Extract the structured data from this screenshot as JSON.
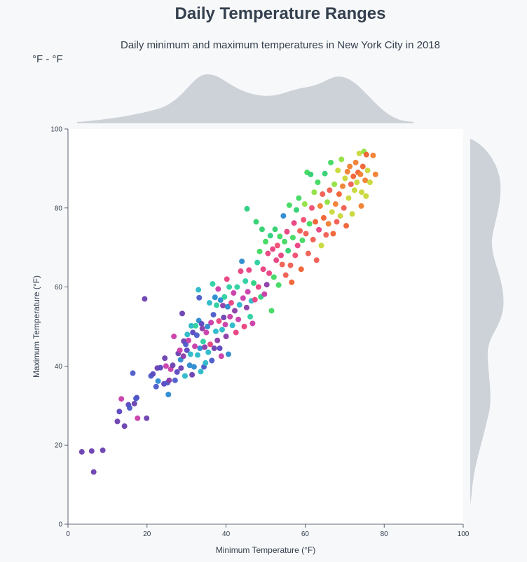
{
  "title": "Daily Temperature Ranges",
  "subtitle": "Daily minimum and maximum temperatures in New York City in 2018",
  "unit_label": "°F - °F",
  "chart_data": {
    "type": "scatter",
    "title": "Daily Temperature Ranges",
    "subtitle": "Daily minimum and maximum temperatures in New York City in 2018",
    "xlabel": "Minimum Temperature (°F)",
    "ylabel": "Maximum Temperature (°F)",
    "xlim": [
      0,
      100
    ],
    "ylim": [
      0,
      100
    ],
    "x_ticks": [
      "0",
      "20",
      "40",
      "60",
      "80",
      "100"
    ],
    "y_ticks": [
      "0",
      "20",
      "40",
      "60",
      "80",
      "100"
    ],
    "grid": false,
    "marginal_distributions": true,
    "colors": {
      "background": "#f7f8fa",
      "plot_background": "#ffffff",
      "marginal_fill": "#cdd2d8",
      "text": "#34404e"
    },
    "color_by": "day of year (rainbow: purple → blue → cyan → green → yellow → orange → red → magenta)",
    "points": [
      {
        "x": 3.5,
        "y": 18.3,
        "c": "#6a3fb0"
      },
      {
        "x": 6,
        "y": 18.5,
        "c": "#6a3fb0"
      },
      {
        "x": 6.5,
        "y": 13.2,
        "c": "#6a3fb0"
      },
      {
        "x": 8.8,
        "y": 18.7,
        "c": "#6a3fb0"
      },
      {
        "x": 12.5,
        "y": 26,
        "c": "#6a3fb0"
      },
      {
        "x": 13,
        "y": 28.5,
        "c": "#5a46c0"
      },
      {
        "x": 13.5,
        "y": 31.7,
        "c": "#c83ca8"
      },
      {
        "x": 14.3,
        "y": 24.8,
        "c": "#6a3fb0"
      },
      {
        "x": 15.3,
        "y": 30.2,
        "c": "#5a46c0"
      },
      {
        "x": 15.6,
        "y": 29.4,
        "c": "#4a5ac8"
      },
      {
        "x": 16.4,
        "y": 38.2,
        "c": "#4a5ac8"
      },
      {
        "x": 16.8,
        "y": 30.5,
        "c": "#6a3fb0"
      },
      {
        "x": 17.4,
        "y": 32,
        "c": "#5a46c0"
      },
      {
        "x": 17.6,
        "y": 26.8,
        "c": "#c83ca8"
      },
      {
        "x": 17.2,
        "y": 31.8,
        "c": "#4a5ac8"
      },
      {
        "x": 19.4,
        "y": 57,
        "c": "#6a3fb0"
      },
      {
        "x": 19.9,
        "y": 26.8,
        "c": "#6a3fb0"
      },
      {
        "x": 21,
        "y": 37.5,
        "c": "#4a5ac8"
      },
      {
        "x": 21.5,
        "y": 38,
        "c": "#5a46c0"
      },
      {
        "x": 22.3,
        "y": 34.8,
        "c": "#4a5ac8"
      },
      {
        "x": 22.8,
        "y": 36.2,
        "c": "#2a8ad0"
      },
      {
        "x": 22.6,
        "y": 39.5,
        "c": "#6a3fb0"
      },
      {
        "x": 23.4,
        "y": 39.6,
        "c": "#5a46c0"
      },
      {
        "x": 24.3,
        "y": 35.5,
        "c": "#5a46c0"
      },
      {
        "x": 24.5,
        "y": 42,
        "c": "#6a3fb0"
      },
      {
        "x": 24.8,
        "y": 40,
        "c": "#c83ca8"
      },
      {
        "x": 25.2,
        "y": 35.8,
        "c": "#4a5ac8"
      },
      {
        "x": 25.4,
        "y": 32.8,
        "c": "#2a8ad0"
      },
      {
        "x": 25.6,
        "y": 36.4,
        "c": "#8a3aa8"
      },
      {
        "x": 26,
        "y": 39.2,
        "c": "#c83ca8"
      },
      {
        "x": 26.5,
        "y": 40.2,
        "c": "#6a3fb0"
      },
      {
        "x": 26.8,
        "y": 47.5,
        "c": "#c83ca8"
      },
      {
        "x": 27.1,
        "y": 36.4,
        "c": "#4a5ac8"
      },
      {
        "x": 27.6,
        "y": 38.5,
        "c": "#5a46c0"
      },
      {
        "x": 27.9,
        "y": 43.2,
        "c": "#6a3fb0"
      },
      {
        "x": 28.3,
        "y": 44,
        "c": "#c83ca8"
      },
      {
        "x": 28.5,
        "y": 41.6,
        "c": "#2a8ad0"
      },
      {
        "x": 28.6,
        "y": 39.5,
        "c": "#6a3fb0"
      },
      {
        "x": 28.9,
        "y": 53.3,
        "c": "#6a3fb0"
      },
      {
        "x": 29.2,
        "y": 42.5,
        "c": "#8a3aa8"
      },
      {
        "x": 29.3,
        "y": 46.3,
        "c": "#6a3fb0"
      },
      {
        "x": 29.6,
        "y": 37.5,
        "c": "#2ab8c8"
      },
      {
        "x": 29.8,
        "y": 45.5,
        "c": "#4a5ac8"
      },
      {
        "x": 30.1,
        "y": 44,
        "c": "#5a46c0"
      },
      {
        "x": 30.2,
        "y": 48,
        "c": "#2ab8c8"
      },
      {
        "x": 30.5,
        "y": 46.5,
        "c": "#c83ca8"
      },
      {
        "x": 30.8,
        "y": 40.2,
        "c": "#2a8ad0"
      },
      {
        "x": 31,
        "y": 43,
        "c": "#2ab8c8"
      },
      {
        "x": 31.2,
        "y": 50.2,
        "c": "#2ab8c8"
      },
      {
        "x": 31.4,
        "y": 37.8,
        "c": "#6a3fb0"
      },
      {
        "x": 31.6,
        "y": 48.5,
        "c": "#5a46c0"
      },
      {
        "x": 31.9,
        "y": 39.8,
        "c": "#2a8ad0"
      },
      {
        "x": 32.1,
        "y": 45,
        "c": "#c83ca8"
      },
      {
        "x": 32.3,
        "y": 50.2,
        "c": "#2ad0a0"
      },
      {
        "x": 32.6,
        "y": 47.8,
        "c": "#4a5ac8"
      },
      {
        "x": 32.8,
        "y": 42.8,
        "c": "#2ab8c8"
      },
      {
        "x": 33,
        "y": 59.3,
        "c": "#2ab8c8"
      },
      {
        "x": 33.1,
        "y": 51.5,
        "c": "#2a8ad0"
      },
      {
        "x": 33.2,
        "y": 57.3,
        "c": "#4a5ac8"
      },
      {
        "x": 33.4,
        "y": 44.5,
        "c": "#2a8ad0"
      },
      {
        "x": 33.6,
        "y": 38.6,
        "c": "#2ab8c8"
      },
      {
        "x": 33.8,
        "y": 50.7,
        "c": "#5a46c0"
      },
      {
        "x": 34,
        "y": 49.5,
        "c": "#8a3aa8"
      },
      {
        "x": 34.2,
        "y": 46.2,
        "c": "#2ad0a0"
      },
      {
        "x": 34.4,
        "y": 39.8,
        "c": "#4a5ac8"
      },
      {
        "x": 34.6,
        "y": 44.8,
        "c": "#8a3aa8"
      },
      {
        "x": 34.8,
        "y": 40.8,
        "c": "#2ab8c8"
      },
      {
        "x": 35,
        "y": 48.5,
        "c": "#c83ca8"
      },
      {
        "x": 35.3,
        "y": 50,
        "c": "#2a8ad0"
      },
      {
        "x": 35.5,
        "y": 43.5,
        "c": "#2ab8c8"
      },
      {
        "x": 35.8,
        "y": 56,
        "c": "#2ab8c8"
      },
      {
        "x": 36,
        "y": 45.5,
        "c": "#e84080"
      },
      {
        "x": 36.2,
        "y": 51,
        "c": "#c83ca8"
      },
      {
        "x": 36.4,
        "y": 41.4,
        "c": "#4a5ac8"
      },
      {
        "x": 36.6,
        "y": 60.8,
        "c": "#2ad0a0"
      },
      {
        "x": 36.8,
        "y": 53,
        "c": "#4a5ac8"
      },
      {
        "x": 37,
        "y": 44.5,
        "c": "#6a3fb0"
      },
      {
        "x": 37.2,
        "y": 57.4,
        "c": "#2a8ad0"
      },
      {
        "x": 37.4,
        "y": 48.8,
        "c": "#2ab8c8"
      },
      {
        "x": 37.6,
        "y": 55.4,
        "c": "#2ad0a0"
      },
      {
        "x": 37.8,
        "y": 46.5,
        "c": "#8a3aa8"
      },
      {
        "x": 38,
        "y": 59.5,
        "c": "#c83ca8"
      },
      {
        "x": 38.2,
        "y": 51.4,
        "c": "#e84080"
      },
      {
        "x": 38.4,
        "y": 44.5,
        "c": "#5a46c0"
      },
      {
        "x": 38.6,
        "y": 56.7,
        "c": "#2a8ad0"
      },
      {
        "x": 38.8,
        "y": 42.5,
        "c": "#c83ca8"
      },
      {
        "x": 39,
        "y": 49.2,
        "c": "#2ab8c8"
      },
      {
        "x": 39.2,
        "y": 55.3,
        "c": "#8a3aa8"
      },
      {
        "x": 39.4,
        "y": 52.3,
        "c": "#6a3fb0"
      },
      {
        "x": 39.6,
        "y": 57.5,
        "c": "#2ad0a0"
      },
      {
        "x": 39.8,
        "y": 50.5,
        "c": "#c83ca8"
      },
      {
        "x": 40,
        "y": 47.5,
        "c": "#8a3aa8"
      },
      {
        "x": 40.2,
        "y": 62,
        "c": "#e84080"
      },
      {
        "x": 40.4,
        "y": 55,
        "c": "#2a8ad0"
      },
      {
        "x": 40.6,
        "y": 43,
        "c": "#2a8ad0"
      },
      {
        "x": 40.8,
        "y": 60,
        "c": "#2ad0a0"
      },
      {
        "x": 41.0,
        "y": 52.5,
        "c": "#c83ca8"
      },
      {
        "x": 41.3,
        "y": 56,
        "c": "#e84080"
      },
      {
        "x": 41.6,
        "y": 50.3,
        "c": "#2ab8c8"
      },
      {
        "x": 41.9,
        "y": 58.5,
        "c": "#c83ca8"
      },
      {
        "x": 42.2,
        "y": 54,
        "c": "#8a3aa8"
      },
      {
        "x": 42.5,
        "y": 48.5,
        "c": "#e84080"
      },
      {
        "x": 42.8,
        "y": 60,
        "c": "#2ad0a0"
      },
      {
        "x": 43.1,
        "y": 51.8,
        "c": "#c83ca8"
      },
      {
        "x": 43.4,
        "y": 55.5,
        "c": "#2ab8c8"
      },
      {
        "x": 43.7,
        "y": 64,
        "c": "#e84080"
      },
      {
        "x": 44,
        "y": 66.5,
        "c": "#2a8ad0"
      },
      {
        "x": 44.3,
        "y": 57.2,
        "c": "#c83ca8"
      },
      {
        "x": 44.6,
        "y": 50,
        "c": "#e84080"
      },
      {
        "x": 44.9,
        "y": 61.5,
        "c": "#2ad0a0"
      },
      {
        "x": 45.2,
        "y": 54.8,
        "c": "#8a3aa8"
      },
      {
        "x": 45.5,
        "y": 58.8,
        "c": "#c83ca8"
      },
      {
        "x": 45.3,
        "y": 79.8,
        "c": "#2ad080"
      },
      {
        "x": 45.8,
        "y": 64.3,
        "c": "#e84080"
      },
      {
        "x": 46.1,
        "y": 52.5,
        "c": "#2ad0a0"
      },
      {
        "x": 46.4,
        "y": 56.5,
        "c": "#2ab8c8"
      },
      {
        "x": 46.7,
        "y": 50.8,
        "c": "#c83ca8"
      },
      {
        "x": 47.0,
        "y": 61,
        "c": "#2ad080"
      },
      {
        "x": 47.3,
        "y": 56.8,
        "c": "#e84080"
      },
      {
        "x": 47.6,
        "y": 76.5,
        "c": "#30d070"
      },
      {
        "x": 47.9,
        "y": 66.2,
        "c": "#2ad0a0"
      },
      {
        "x": 48.2,
        "y": 60,
        "c": "#e84080"
      },
      {
        "x": 48.5,
        "y": 69,
        "c": "#40d860"
      },
      {
        "x": 48.8,
        "y": 57.5,
        "c": "#2ad080"
      },
      {
        "x": 49.1,
        "y": 74.6,
        "c": "#30d070"
      },
      {
        "x": 49.4,
        "y": 64.5,
        "c": "#e84080"
      },
      {
        "x": 49.7,
        "y": 58.2,
        "c": "#c83ca8"
      },
      {
        "x": 50.0,
        "y": 71.5,
        "c": "#40d860"
      },
      {
        "x": 50.3,
        "y": 60.6,
        "c": "#8a3aa8"
      },
      {
        "x": 50.6,
        "y": 68.5,
        "c": "#e84080"
      },
      {
        "x": 50.9,
        "y": 63.5,
        "c": "#e84080"
      },
      {
        "x": 51.2,
        "y": 73,
        "c": "#2ad080"
      },
      {
        "x": 51.5,
        "y": 54,
        "c": "#40d860"
      },
      {
        "x": 51.8,
        "y": 69.6,
        "c": "#e84080"
      },
      {
        "x": 52.1,
        "y": 62.5,
        "c": "#40d860"
      },
      {
        "x": 52.4,
        "y": 74.6,
        "c": "#30d070"
      },
      {
        "x": 52.7,
        "y": 66.8,
        "c": "#e84080"
      },
      {
        "x": 53.0,
        "y": 70.5,
        "c": "#f04c70"
      },
      {
        "x": 53.3,
        "y": 60.5,
        "c": "#40d860"
      },
      {
        "x": 53.6,
        "y": 72.8,
        "c": "#40d860"
      },
      {
        "x": 53.9,
        "y": 68,
        "c": "#e84080"
      },
      {
        "x": 54.2,
        "y": 65.7,
        "c": "#f05c50"
      },
      {
        "x": 54.5,
        "y": 78,
        "c": "#2a8ad0"
      },
      {
        "x": 54.8,
        "y": 71.5,
        "c": "#40d860"
      },
      {
        "x": 55.1,
        "y": 63,
        "c": "#f05c50"
      },
      {
        "x": 55.4,
        "y": 74,
        "c": "#e84080"
      },
      {
        "x": 55.7,
        "y": 69.2,
        "c": "#30d070"
      },
      {
        "x": 56.0,
        "y": 80.7,
        "c": "#40d860"
      },
      {
        "x": 56.3,
        "y": 65.5,
        "c": "#f05c50"
      },
      {
        "x": 56.6,
        "y": 61.2,
        "c": "#f06030"
      },
      {
        "x": 56.9,
        "y": 72.5,
        "c": "#40d860"
      },
      {
        "x": 57.2,
        "y": 76.2,
        "c": "#e84080"
      },
      {
        "x": 57.5,
        "y": 68,
        "c": "#f04c70"
      },
      {
        "x": 57.8,
        "y": 79.5,
        "c": "#30d070"
      },
      {
        "x": 58.1,
        "y": 70.5,
        "c": "#e84080"
      },
      {
        "x": 58.4,
        "y": 82.5,
        "c": "#40d860"
      },
      {
        "x": 58.7,
        "y": 74.2,
        "c": "#f05c50"
      },
      {
        "x": 59.0,
        "y": 64.5,
        "c": "#f06030"
      },
      {
        "x": 59.3,
        "y": 71.8,
        "c": "#40d860"
      },
      {
        "x": 59.6,
        "y": 77,
        "c": "#f04c70"
      },
      {
        "x": 59.9,
        "y": 81,
        "c": "#90e040"
      },
      {
        "x": 60.2,
        "y": 73.5,
        "c": "#f05c50"
      },
      {
        "x": 60.5,
        "y": 89,
        "c": "#40d860"
      },
      {
        "x": 60.8,
        "y": 68.5,
        "c": "#f05c50"
      },
      {
        "x": 61.1,
        "y": 76,
        "c": "#40d860"
      },
      {
        "x": 61.4,
        "y": 88.5,
        "c": "#30d070"
      },
      {
        "x": 61.7,
        "y": 80,
        "c": "#f04c70"
      },
      {
        "x": 62.0,
        "y": 72,
        "c": "#f05c50"
      },
      {
        "x": 62.3,
        "y": 84,
        "c": "#90e040"
      },
      {
        "x": 62.6,
        "y": 76.5,
        "c": "#f06030"
      },
      {
        "x": 62.9,
        "y": 66.8,
        "c": "#f05c50"
      },
      {
        "x": 63.2,
        "y": 86.5,
        "c": "#40d860"
      },
      {
        "x": 63.5,
        "y": 74.5,
        "c": "#e84080"
      },
      {
        "x": 63.8,
        "y": 80.5,
        "c": "#f08030"
      },
      {
        "x": 64.1,
        "y": 70.5,
        "c": "#c8d838"
      },
      {
        "x": 64.4,
        "y": 83.5,
        "c": "#f05c50"
      },
      {
        "x": 64.7,
        "y": 77.5,
        "c": "#f06030"
      },
      {
        "x": 65.0,
        "y": 88.7,
        "c": "#30d070"
      },
      {
        "x": 65.3,
        "y": 73.2,
        "c": "#f05c50"
      },
      {
        "x": 65.6,
        "y": 81.5,
        "c": "#90e040"
      },
      {
        "x": 65.9,
        "y": 76,
        "c": "#f08030"
      },
      {
        "x": 66.2,
        "y": 84.5,
        "c": "#f05c50"
      },
      {
        "x": 66.5,
        "y": 91.5,
        "c": "#40d860"
      },
      {
        "x": 66.8,
        "y": 79,
        "c": "#c8d838"
      },
      {
        "x": 67.1,
        "y": 73.5,
        "c": "#f06030"
      },
      {
        "x": 67.4,
        "y": 86,
        "c": "#90e040"
      },
      {
        "x": 67.7,
        "y": 81,
        "c": "#f08030"
      },
      {
        "x": 68.0,
        "y": 76.5,
        "c": "#f05c50"
      },
      {
        "x": 68.3,
        "y": 89.5,
        "c": "#c8d838"
      },
      {
        "x": 68.6,
        "y": 83.5,
        "c": "#f06030"
      },
      {
        "x": 68.9,
        "y": 78,
        "c": "#c8d838"
      },
      {
        "x": 69.2,
        "y": 92.3,
        "c": "#90e040"
      },
      {
        "x": 69.5,
        "y": 85.5,
        "c": "#f08030"
      },
      {
        "x": 69.8,
        "y": 80,
        "c": "#f05c50"
      },
      {
        "x": 70.1,
        "y": 87.5,
        "c": "#c8d838"
      },
      {
        "x": 70.4,
        "y": 75.5,
        "c": "#f06030"
      },
      {
        "x": 70.7,
        "y": 89.2,
        "c": "#f08030"
      },
      {
        "x": 71.0,
        "y": 82.5,
        "c": "#c8d838"
      },
      {
        "x": 71.3,
        "y": 90.5,
        "c": "#f08030"
      },
      {
        "x": 71.6,
        "y": 86,
        "c": "#f05c50"
      },
      {
        "x": 71.9,
        "y": 78.5,
        "c": "#c8d838"
      },
      {
        "x": 72.2,
        "y": 88,
        "c": "#f06030"
      },
      {
        "x": 72.5,
        "y": 84.5,
        "c": "#c8d838"
      },
      {
        "x": 72.8,
        "y": 91.5,
        "c": "#f08030"
      },
      {
        "x": 73.1,
        "y": 86.5,
        "c": "#c8d838"
      },
      {
        "x": 73.4,
        "y": 89,
        "c": "#f06030"
      },
      {
        "x": 73.7,
        "y": 93.8,
        "c": "#c8d838"
      },
      {
        "x": 74.0,
        "y": 88.5,
        "c": "#f08030"
      },
      {
        "x": 74.3,
        "y": 84,
        "c": "#c8d838"
      },
      {
        "x": 74.6,
        "y": 90.5,
        "c": "#f06030"
      },
      {
        "x": 74.9,
        "y": 94.3,
        "c": "#90e040"
      },
      {
        "x": 75.2,
        "y": 87,
        "c": "#f08030"
      },
      {
        "x": 75.5,
        "y": 93.5,
        "c": "#f06030"
      },
      {
        "x": 75.8,
        "y": 89.5,
        "c": "#c8d838"
      },
      {
        "x": 74.2,
        "y": 80.5,
        "c": "#f08030"
      },
      {
        "x": 76.4,
        "y": 86.5,
        "c": "#c8d838"
      },
      {
        "x": 77.2,
        "y": 93.3,
        "c": "#f08030"
      },
      {
        "x": 77.8,
        "y": 88.5,
        "c": "#f08030"
      },
      {
        "x": 75.4,
        "y": 83,
        "c": "#c8d838"
      }
    ]
  }
}
